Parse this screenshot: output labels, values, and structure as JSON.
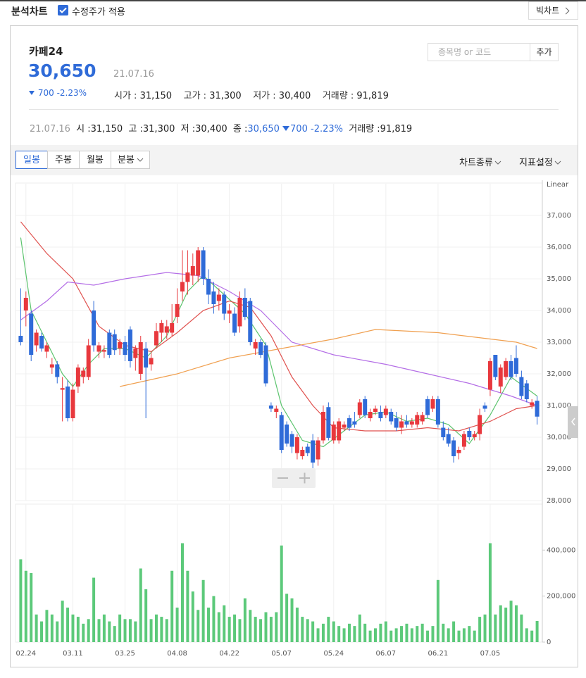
{
  "toolbar": {
    "title": "분석차트",
    "checkbox": "수정주가 적용",
    "bigchart": "빅차트"
  },
  "stock": {
    "name": "카페24",
    "price": "30,650",
    "date": "21.07.16",
    "change": "700",
    "change_pct": "-2.23%",
    "open_label": "시가 :",
    "open": "31,150",
    "high_label": "고가 :",
    "high": "31,300",
    "low_label": "저가 :",
    "low": "30,400",
    "volume_label": "거래량 :",
    "volume": "91,819"
  },
  "search": {
    "placeholder": "종목명 or 코드",
    "button": "추가"
  },
  "summary": {
    "date": "21.07.16",
    "open_label": "시 :",
    "open": "31,150",
    "high_label": "고 :",
    "high": "31,300",
    "low_label": "저 :",
    "low": "30,400",
    "close_label": "종 :",
    "close": "30,650",
    "change": "700",
    "change_pct": "-2.23%",
    "volume_label": "거래량 :",
    "volume": "91,819"
  },
  "tabs": [
    "일봉",
    "주봉",
    "월봉",
    "분봉"
  ],
  "menus": [
    "차트종류",
    "지표설정"
  ],
  "chart_data": [
    {
      "type": "candlestick",
      "scale_label": "Linear",
      "up_color": "#e8383d",
      "down_color": "#2f6bd8",
      "grid": true,
      "xlim": [
        -1,
        100
      ],
      "xticks": [
        {
          "value": 1,
          "label": "02.24"
        },
        {
          "value": 10,
          "label": "03.11"
        },
        {
          "value": 20,
          "label": "03.25"
        },
        {
          "value": 30,
          "label": "04.08"
        },
        {
          "value": 40,
          "label": "04.22"
        },
        {
          "value": 50,
          "label": "05.07"
        },
        {
          "value": 60,
          "label": "05.24"
        },
        {
          "value": 70,
          "label": "06.07"
        },
        {
          "value": 80,
          "label": "06.21"
        },
        {
          "value": 90,
          "label": "07.05"
        }
      ],
      "ylim": [
        28000,
        38000
      ],
      "yticks": [
        {
          "value": 28000,
          "label": "28,000"
        },
        {
          "value": 29000,
          "label": "29,000"
        },
        {
          "value": 30000,
          "label": "30,000"
        },
        {
          "value": 31000,
          "label": "31,000"
        },
        {
          "value": 32000,
          "label": "32,000"
        },
        {
          "value": 33000,
          "label": "33,000"
        },
        {
          "value": 34000,
          "label": "34,000"
        },
        {
          "value": 35000,
          "label": "35,000"
        },
        {
          "value": 36000,
          "label": "36,000"
        },
        {
          "value": 37000,
          "label": "37,000"
        }
      ],
      "ohlc": [
        [
          33200,
          34700,
          32900,
          33000
        ],
        [
          34000,
          34600,
          33500,
          34400
        ],
        [
          33900,
          34000,
          32400,
          32600
        ],
        [
          32900,
          33400,
          32700,
          33300
        ],
        [
          33200,
          33300,
          32700,
          32800
        ],
        [
          32700,
          33000,
          32500,
          32900
        ],
        [
          32200,
          32500,
          32000,
          32300
        ],
        [
          32300,
          32400,
          31700,
          31900
        ],
        [
          31500,
          31900,
          30500,
          31550
        ],
        [
          31600,
          31800,
          30500,
          30600
        ],
        [
          30600,
          31700,
          30500,
          31500
        ],
        [
          31600,
          32300,
          31400,
          32200
        ],
        [
          31900,
          32200,
          31700,
          32100
        ],
        [
          31900,
          33100,
          31800,
          32900
        ],
        [
          34000,
          34300,
          32700,
          32900
        ],
        [
          32700,
          33000,
          32500,
          32900
        ],
        [
          32700,
          32900,
          32500,
          32750
        ],
        [
          33300,
          33400,
          32500,
          32600
        ],
        [
          33250,
          33400,
          32600,
          32750
        ],
        [
          32800,
          33100,
          32600,
          33000
        ],
        [
          33000,
          33200,
          32400,
          32600
        ],
        [
          33400,
          33500,
          32200,
          32400
        ],
        [
          32500,
          32900,
          32100,
          32800
        ],
        [
          32000,
          33200,
          31800,
          33000
        ],
        [
          32800,
          33000,
          30600,
          32200
        ],
        [
          32300,
          32700,
          32100,
          32500
        ],
        [
          32900,
          33600,
          32800,
          33350
        ],
        [
          33300,
          33700,
          33000,
          33600
        ],
        [
          33300,
          33700,
          33100,
          33500
        ],
        [
          33300,
          34200,
          33200,
          33600
        ],
        [
          33800,
          34700,
          33600,
          34200
        ],
        [
          34600,
          35900,
          34300,
          34900
        ],
        [
          34900,
          35900,
          34500,
          35200
        ],
        [
          35100,
          35800,
          34800,
          35400
        ],
        [
          35100,
          36000,
          34900,
          35900
        ],
        [
          35900,
          36000,
          34800,
          35000
        ],
        [
          35000,
          35300,
          34200,
          34500
        ],
        [
          34600,
          34900,
          33900,
          34200
        ],
        [
          34300,
          34700,
          34000,
          34500
        ],
        [
          34500,
          34600,
          33700,
          33900
        ],
        [
          33900,
          34200,
          33600,
          34000
        ],
        [
          33900,
          34100,
          33200,
          33300
        ],
        [
          33500,
          34600,
          33300,
          34400
        ],
        [
          34400,
          34700,
          33700,
          33800
        ],
        [
          34300,
          34400,
          32900,
          33000
        ],
        [
          32800,
          33100,
          32600,
          33000
        ],
        [
          33000,
          33100,
          32500,
          32600
        ],
        [
          32900,
          33000,
          31600,
          31700
        ],
        [
          31000,
          31100,
          30800,
          30900
        ],
        [
          30800,
          31000,
          30600,
          30900
        ],
        [
          30700,
          30800,
          29500,
          29600
        ],
        [
          30400,
          30500,
          29700,
          29800
        ],
        [
          30100,
          30200,
          29500,
          29700
        ],
        [
          29500,
          30100,
          29300,
          30000
        ],
        [
          29400,
          29700,
          29300,
          29600
        ],
        [
          29700,
          29800,
          29400,
          29500
        ],
        [
          29900,
          30100,
          29000,
          29200
        ],
        [
          29300,
          30000,
          29100,
          29900
        ],
        [
          29900,
          31000,
          29800,
          30800
        ],
        [
          30950,
          31100,
          29900,
          29980
        ],
        [
          29900,
          30500,
          29800,
          30400
        ],
        [
          29900,
          30600,
          29800,
          30500
        ],
        [
          30300,
          30500,
          30200,
          30400
        ],
        [
          30600,
          30700,
          30200,
          30300
        ],
        [
          30500,
          30800,
          30300,
          30400
        ],
        [
          30700,
          31200,
          30600,
          31100
        ],
        [
          31200,
          31300,
          30600,
          30700
        ],
        [
          30600,
          30900,
          30500,
          30800
        ],
        [
          30800,
          31000,
          30700,
          30900
        ],
        [
          30800,
          31000,
          30500,
          30600
        ],
        [
          30700,
          31000,
          30600,
          30900
        ],
        [
          30800,
          30900,
          30400,
          30500
        ],
        [
          30600,
          30800,
          30200,
          30300
        ],
        [
          30300,
          30700,
          30100,
          30500
        ],
        [
          30500,
          30700,
          30300,
          30400
        ],
        [
          30400,
          30600,
          30300,
          30500
        ],
        [
          30400,
          30800,
          30300,
          30700
        ],
        [
          30500,
          30800,
          30400,
          30700
        ],
        [
          31200,
          31300,
          30600,
          30700
        ],
        [
          30900,
          31300,
          30800,
          31200
        ],
        [
          31200,
          31300,
          30300,
          30400
        ],
        [
          30300,
          30500,
          29900,
          30000
        ],
        [
          30100,
          30300,
          29700,
          29800
        ],
        [
          29900,
          30000,
          29200,
          29400
        ],
        [
          29500,
          29700,
          29300,
          29600
        ],
        [
          29700,
          30200,
          29600,
          30100
        ],
        [
          30200,
          30300,
          29900,
          30000
        ],
        [
          30000,
          30200,
          29900,
          30100
        ],
        [
          30100,
          30900,
          29900,
          30700
        ],
        [
          31000,
          31100,
          30800,
          30900
        ],
        [
          31500,
          32500,
          31300,
          32400
        ],
        [
          32600,
          32600,
          31800,
          31900
        ],
        [
          31600,
          32300,
          31400,
          32200
        ],
        [
          31900,
          32500,
          31800,
          32400
        ],
        [
          32400,
          32600,
          31800,
          31900
        ],
        [
          32500,
          32900,
          31900,
          32000
        ],
        [
          31900,
          32100,
          31200,
          31300
        ],
        [
          31700,
          31800,
          31100,
          31200
        ],
        [
          31000,
          31200,
          30900,
          31100
        ],
        [
          31150,
          31300,
          30400,
          30650
        ]
      ],
      "lines": [
        {
          "color": "#5cc46e",
          "x": [
            0,
            2,
            5,
            8,
            10,
            13,
            16,
            20,
            24,
            28,
            32,
            35,
            39,
            43,
            47,
            50,
            54,
            58,
            62,
            66,
            70,
            74,
            78,
            82,
            86,
            90,
            94,
            99
          ],
          "values": [
            36300,
            34000,
            33000,
            32000,
            31600,
            32300,
            32800,
            32800,
            32500,
            33200,
            34600,
            35100,
            34500,
            33900,
            32900,
            31000,
            29900,
            29700,
            30200,
            30700,
            30800,
            30500,
            30600,
            30400,
            29800,
            30700,
            31900,
            31300
          ]
        },
        {
          "color": "#e0524f",
          "x": [
            0,
            5,
            10,
            15,
            20,
            25,
            30,
            35,
            40,
            44,
            48,
            52,
            56,
            60,
            66,
            72,
            78,
            84,
            90,
            95,
            99
          ],
          "values": [
            36800,
            35800,
            35000,
            33500,
            32900,
            32700,
            33300,
            34000,
            34300,
            34100,
            33200,
            31900,
            31000,
            30300,
            30200,
            30200,
            30300,
            30200,
            30500,
            30900,
            31000
          ]
        },
        {
          "color": "#b46ee6",
          "x": [
            0,
            5,
            9,
            14,
            20,
            28,
            34,
            40,
            46,
            52,
            60,
            70,
            78,
            86,
            94,
            99
          ],
          "values": [
            33700,
            34300,
            34900,
            34800,
            35000,
            35200,
            35100,
            34600,
            34000,
            33000,
            32600,
            32300,
            32000,
            31700,
            31300,
            31000
          ]
        },
        {
          "color": "#f0a050",
          "x": [
            19,
            30,
            40,
            50,
            60,
            68,
            80,
            90,
            95,
            99
          ],
          "values": [
            31600,
            32000,
            32500,
            32800,
            33100,
            33400,
            33300,
            33100,
            33000,
            32800
          ]
        }
      ]
    },
    {
      "type": "bar",
      "color": "#5cc97a",
      "xlim": [
        -1,
        100
      ],
      "ylim": [
        0,
        600000
      ],
      "yticks": [
        {
          "value": 0,
          "label": "0"
        },
        {
          "value": 200000,
          "label": "200,000"
        },
        {
          "value": 400000,
          "label": "400,000"
        }
      ],
      "values": [
        360000,
        310000,
        300000,
        120000,
        90000,
        140000,
        120000,
        90000,
        180000,
        150000,
        120000,
        110000,
        80000,
        100000,
        280000,
        100000,
        120000,
        90000,
        70000,
        120000,
        100000,
        100000,
        90000,
        320000,
        230000,
        100000,
        120000,
        110000,
        100000,
        310000,
        150000,
        430000,
        310000,
        220000,
        140000,
        270000,
        150000,
        200000,
        130000,
        160000,
        110000,
        120000,
        100000,
        190000,
        140000,
        110000,
        100000,
        130000,
        110000,
        130000,
        420000,
        210000,
        190000,
        150000,
        110000,
        100000,
        90000,
        60000,
        80000,
        110000,
        90000,
        70000,
        60000,
        80000,
        70000,
        120000,
        80000,
        50000,
        60000,
        80000,
        90000,
        50000,
        60000,
        70000,
        80000,
        60000,
        70000,
        80000,
        50000,
        70000,
        270000,
        80000,
        60000,
        90000,
        50000,
        60000,
        70000,
        50000,
        110000,
        120000,
        430000,
        120000,
        160000,
        150000,
        180000,
        160000,
        120000,
        60000,
        50000,
        91819
      ]
    }
  ]
}
